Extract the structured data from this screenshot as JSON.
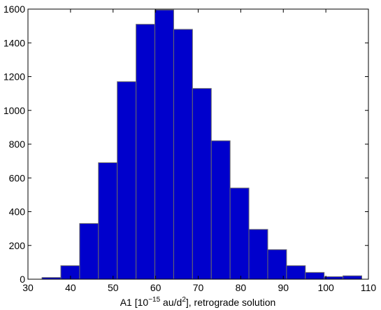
{
  "chart_data": {
    "type": "histogram",
    "xlabel": [
      "A1 [10",
      "−15",
      " au/d",
      "2",
      "], retrograde solution"
    ],
    "bins": [
      33.3,
      37.72,
      42.14,
      46.56,
      50.98,
      55.4,
      59.82,
      64.24,
      68.66,
      73.08,
      77.5,
      81.92,
      86.34,
      90.76,
      95.18,
      99.6,
      104.02,
      108.44
    ],
    "values": [
      10,
      80,
      330,
      690,
      1170,
      1510,
      1595,
      1480,
      1130,
      820,
      540,
      295,
      175,
      80,
      40,
      15,
      20
    ],
    "color": "#0000cc",
    "edgecolor": "#6a6a6a",
    "xlim": [
      30,
      110
    ],
    "xticks": [
      30,
      40,
      50,
      60,
      70,
      80,
      90,
      100,
      110
    ],
    "ylim": [
      0,
      1600
    ],
    "yticks": [
      0,
      200,
      400,
      600,
      800,
      1000,
      1200,
      1400,
      1600
    ],
    "grid": false
  }
}
